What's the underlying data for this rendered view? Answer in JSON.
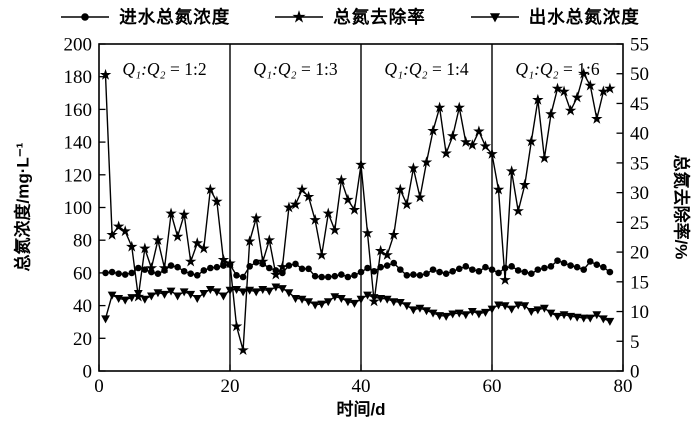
{
  "legend": {
    "items": [
      {
        "key": "influent-tn-concentration",
        "label": "进水总氮浓度",
        "marker": "circle"
      },
      {
        "key": "tn-removal-rate",
        "label": "总氮去除率",
        "marker": "star"
      },
      {
        "key": "effluent-tn-concentration",
        "label": "出水总氮浓度",
        "marker": "triangle-down"
      }
    ]
  },
  "chart_data": {
    "type": "line",
    "title": "",
    "xlabel": "时间/d",
    "ylabel_left": "总氮浓度/mg·L⁻¹",
    "ylabel_right": "总氮去除率/%",
    "x_range": [
      0,
      80
    ],
    "x_ticks": [
      0,
      20,
      40,
      60,
      80
    ],
    "y_left_range": [
      0,
      200
    ],
    "y_left_ticks": [
      0,
      20,
      40,
      60,
      80,
      100,
      120,
      140,
      160,
      180,
      200
    ],
    "y_right_range": [
      0,
      55
    ],
    "y_right_ticks": [
      0,
      5,
      10,
      15,
      20,
      25,
      30,
      35,
      40,
      45,
      50,
      55
    ],
    "grid": false,
    "legend_position": "top",
    "color": "#000000",
    "background": "#ffffff",
    "dividers_x": [
      20,
      40,
      60
    ],
    "annotations": [
      {
        "var": "Q₁:Q₂",
        "eq": " = 1:2",
        "day_center": 10
      },
      {
        "var": "Q₁:Q₂",
        "eq": " = 1:3",
        "day_center": 30
      },
      {
        "var": "Q₁:Q₂",
        "eq": " = 1:4",
        "day_center": 50
      },
      {
        "var": "Q₁:Q₂",
        "eq": " = 1:6",
        "day_center": 70
      }
    ],
    "days": [
      1,
      2,
      3,
      4,
      5,
      6,
      7,
      8,
      9,
      10,
      11,
      12,
      13,
      14,
      15,
      16,
      17,
      18,
      19,
      20,
      21,
      22,
      23,
      24,
      25,
      26,
      27,
      28,
      29,
      30,
      31,
      32,
      33,
      34,
      35,
      36,
      37,
      38,
      39,
      40,
      41,
      42,
      43,
      44,
      45,
      46,
      47,
      48,
      49,
      50,
      51,
      52,
      53,
      54,
      55,
      56,
      57,
      58,
      59,
      60,
      61,
      62,
      63,
      64,
      65,
      66,
      67,
      68,
      69,
      70,
      71,
      72,
      73,
      74,
      75,
      76,
      77,
      78
    ],
    "series": [
      {
        "key": "influent-tn-concentration",
        "name": "进水总氮浓度",
        "axis": "left",
        "marker": "circle",
        "values": [
          60,
          60.5,
          59.5,
          59,
          60,
          63,
          62,
          60.5,
          59.5,
          61.5,
          64.5,
          63.5,
          61,
          59.5,
          58.5,
          61.5,
          63,
          63.5,
          64.5,
          65,
          58.5,
          57.5,
          64,
          66.5,
          65.5,
          63,
          61.5,
          60,
          64.5,
          65.5,
          62.5,
          62.5,
          58,
          57.5,
          57.5,
          58,
          59,
          57.5,
          58.5,
          60.5,
          63,
          61,
          63.5,
          64.5,
          66,
          62,
          58.5,
          59,
          58.5,
          59.5,
          62,
          60.5,
          59.5,
          61,
          62.5,
          64,
          62,
          61,
          63.5,
          62,
          60,
          63,
          64,
          61.5,
          60.5,
          59.5,
          62,
          63,
          64,
          67.5,
          66,
          64.5,
          63.5,
          62,
          67,
          65,
          63.5,
          60.5
        ]
      },
      {
        "key": "tn-removal-rate",
        "name": "总氮去除率",
        "axis": "right",
        "marker": "star",
        "values": [
          49.8,
          22.9,
          24.3,
          23.5,
          20.9,
          12.5,
          20.6,
          17.3,
          22,
          17.3,
          26.5,
          22.6,
          26.3,
          18.4,
          21.5,
          20.6,
          30.5,
          28.5,
          18.7,
          18.1,
          7.5,
          3.5,
          21.8,
          25.7,
          18.4,
          22,
          16.2,
          17.5,
          27.5,
          28,
          30.5,
          29.3,
          25.4,
          19.5,
          26.5,
          23.7,
          32.1,
          28.8,
          27.1,
          34.7,
          23.2,
          11.7,
          20.2,
          19.5,
          22.9,
          30.5,
          28,
          34.1,
          29.2,
          35.1,
          40.4,
          44.3,
          36.6,
          39.5,
          44.3,
          38.5,
          38,
          40.3,
          37.8,
          36.5,
          30.5,
          15.3,
          33.6,
          26.9,
          31.3,
          38.6,
          45.6,
          35.8,
          43.2,
          47.5,
          47,
          43.8,
          46,
          50,
          48,
          42.4,
          47,
          47.5
        ]
      },
      {
        "key": "effluent-tn-concentration",
        "name": "出水总氮浓度",
        "axis": "left",
        "marker": "triangle-down",
        "values": [
          32,
          46.5,
          44.5,
          43.5,
          45,
          47.5,
          44,
          46,
          48,
          47,
          49,
          46,
          48.5,
          47,
          44.5,
          47.5,
          50,
          48.5,
          46,
          49.5,
          50,
          48.5,
          49.5,
          48.5,
          50,
          49,
          51.5,
          50.5,
          48,
          44.5,
          44,
          42.5,
          40.5,
          41,
          42.5,
          45.5,
          44.5,
          42.5,
          41.5,
          44,
          46.5,
          45,
          44.5,
          44,
          42.5,
          42,
          40,
          37.5,
          38.5,
          37,
          35.5,
          34,
          33.5,
          35,
          35.5,
          34.5,
          36.5,
          35,
          36,
          38,
          40.5,
          40,
          38,
          40.5,
          40,
          36.5,
          37.5,
          38.5,
          35.5,
          33.5,
          34.5,
          33.5,
          33,
          32.5,
          32.5,
          34.5,
          32,
          30.5
        ]
      }
    ]
  }
}
